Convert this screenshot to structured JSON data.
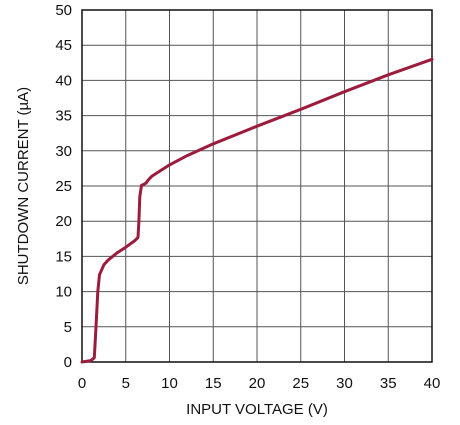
{
  "chart_data": {
    "type": "line",
    "title": "",
    "xlabel": "INPUT VOLTAGE (V)",
    "ylabel": "SHUTDOWN CURRENT (µA)",
    "xlim": [
      0,
      40
    ],
    "ylim": [
      0,
      50
    ],
    "x_ticks": [
      "0",
      "5",
      "10",
      "15",
      "20",
      "25",
      "30",
      "35",
      "40"
    ],
    "y_ticks": [
      "0",
      "5",
      "10",
      "15",
      "20",
      "25",
      "30",
      "35",
      "40",
      "45",
      "50"
    ],
    "grid": true,
    "line_color": "#9b1c3c",
    "series": [
      {
        "x": [
          0,
          1.0,
          1.4,
          1.6,
          1.8,
          2.0,
          2.5,
          3.0,
          4.0,
          5.0,
          6.0,
          6.4,
          6.5,
          6.6,
          6.8,
          7.0,
          7.3,
          7.6,
          8,
          10,
          12,
          15,
          20,
          25,
          30,
          35,
          40
        ],
        "y": [
          0,
          0.2,
          0.6,
          5.0,
          10.0,
          12.4,
          13.8,
          14.5,
          15.5,
          16.3,
          17.2,
          17.7,
          20.0,
          23.5,
          25.1,
          25.2,
          25.4,
          25.9,
          26.4,
          28.0,
          29.3,
          31.0,
          33.5,
          35.9,
          38.4,
          40.8,
          43.0
        ]
      }
    ]
  }
}
